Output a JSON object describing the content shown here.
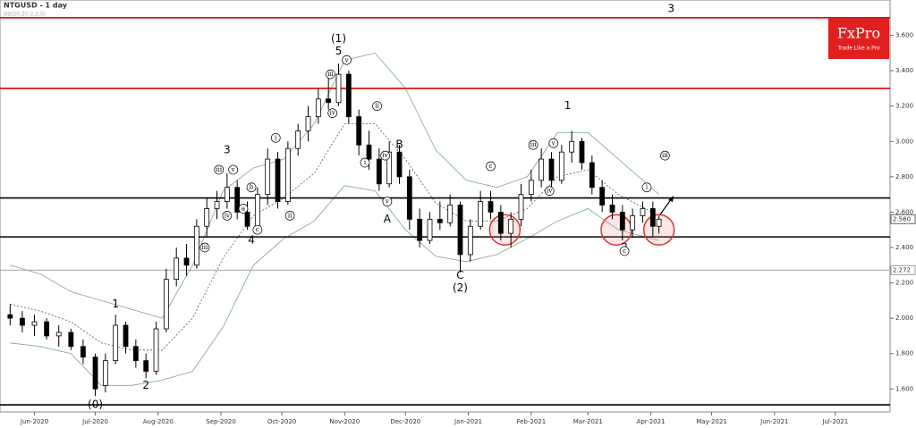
{
  "chart_data": {
    "type": "candlestick",
    "title": "NTGUSD - 1 day",
    "subtitle": "BB(20,20.2,2,0)",
    "xlim": [
      14,
      453
    ],
    "ylim": [
      1.47,
      3.8
    ],
    "xticks": [
      {
        "value": 31,
        "label": "Jun-2020"
      },
      {
        "value": 61,
        "label": "Jul-2020"
      },
      {
        "value": 92,
        "label": "Aug-2020"
      },
      {
        "value": 123,
        "label": "Sep-2020"
      },
      {
        "value": 153,
        "label": "Oct-2020"
      },
      {
        "value": 184,
        "label": "Nov-2020"
      },
      {
        "value": 214,
        "label": "Dec-2020"
      },
      {
        "value": 245,
        "label": "Jan-2021"
      },
      {
        "value": 276,
        "label": "Feb-2021"
      },
      {
        "value": 304,
        "label": "Mar-2021"
      },
      {
        "value": 335,
        "label": "Apr-2021"
      },
      {
        "value": 365,
        "label": "May-2021"
      },
      {
        "value": 396,
        "label": "Jun-2021"
      },
      {
        "value": 426,
        "label": "Jul-2021"
      }
    ],
    "yticks": [
      {
        "value": 1.6,
        "label": "1.600"
      },
      {
        "value": 1.8,
        "label": "1.800"
      },
      {
        "value": 2,
        "label": "2.000"
      },
      {
        "value": 2.2,
        "label": "2.200"
      },
      {
        "value": 2.4,
        "label": "2.400"
      },
      {
        "value": 2.6,
        "label": "2.600"
      },
      {
        "value": 2.8,
        "label": "2.800"
      },
      {
        "value": 3,
        "label": "3.000"
      },
      {
        "value": 3.2,
        "label": "3.200"
      },
      {
        "value": 3.4,
        "label": "3.400"
      },
      {
        "value": 3.6,
        "label": "3.600"
      }
    ],
    "up_color": "#ffffff",
    "down_color": "#000000",
    "x": [
      19,
      25,
      31,
      37,
      43,
      49,
      55,
      61,
      66,
      71,
      76,
      81,
      86,
      91,
      96,
      101,
      106,
      111,
      116,
      121,
      126,
      131,
      136,
      141,
      146,
      151,
      156,
      161,
      166,
      171,
      176,
      181,
      186,
      191,
      196,
      201,
      206,
      211,
      216,
      221,
      226,
      231,
      236,
      241,
      246,
      251,
      256,
      261,
      266,
      271,
      276,
      281,
      286,
      291,
      296,
      301,
      306,
      311,
      316,
      321,
      326,
      331,
      336,
      339
    ],
    "open": [
      2.02,
      2.0,
      1.96,
      1.98,
      1.9,
      1.92,
      1.84,
      1.78,
      1.62,
      1.76,
      1.96,
      1.84,
      1.76,
      1.7,
      1.94,
      2.22,
      2.34,
      2.3,
      2.52,
      2.62,
      2.66,
      2.74,
      2.6,
      2.52,
      2.7,
      2.9,
      2.66,
      2.96,
      3.06,
      3.14,
      3.24,
      3.22,
      3.38,
      3.14,
      2.98,
      2.9,
      2.76,
      2.94,
      2.8,
      2.56,
      2.44,
      2.56,
      2.54,
      2.64,
      2.36,
      2.52,
      2.66,
      2.6,
      2.48,
      2.56,
      2.7,
      2.78,
      2.9,
      2.78,
      2.94,
      3.0,
      2.88,
      2.74,
      2.64,
      2.6,
      2.5,
      2.58,
      2.62,
      2.52
    ],
    "high": [
      2.08,
      2.04,
      2.02,
      2.0,
      1.96,
      1.94,
      1.88,
      1.8,
      1.8,
      2.02,
      1.98,
      1.88,
      1.8,
      1.98,
      2.28,
      2.4,
      2.42,
      2.56,
      2.68,
      2.72,
      2.82,
      2.78,
      2.66,
      2.74,
      2.96,
      2.94,
      3.0,
      3.1,
      3.2,
      3.3,
      3.36,
      3.44,
      3.4,
      3.18,
      3.06,
      2.96,
      3.0,
      2.98,
      2.84,
      2.62,
      2.6,
      2.66,
      2.7,
      2.66,
      2.56,
      2.72,
      2.72,
      2.64,
      2.6,
      2.76,
      2.84,
      2.96,
      2.94,
      2.98,
      3.06,
      3.02,
      2.92,
      2.78,
      2.7,
      2.64,
      2.62,
      2.66,
      2.66,
      2.58
    ],
    "low": [
      1.96,
      1.92,
      1.9,
      1.88,
      1.84,
      1.82,
      1.74,
      1.56,
      1.58,
      1.74,
      1.8,
      1.72,
      1.66,
      1.68,
      1.92,
      2.18,
      2.24,
      2.28,
      2.46,
      2.56,
      2.62,
      2.56,
      2.5,
      2.5,
      2.64,
      2.62,
      2.64,
      2.92,
      3.0,
      3.1,
      3.18,
      3.2,
      3.1,
      2.92,
      2.84,
      2.72,
      2.74,
      2.76,
      2.5,
      2.4,
      2.42,
      2.5,
      2.52,
      2.26,
      2.32,
      2.5,
      2.56,
      2.44,
      2.4,
      2.52,
      2.66,
      2.74,
      2.72,
      2.76,
      2.88,
      2.84,
      2.7,
      2.6,
      2.56,
      2.44,
      2.46,
      2.54,
      2.46,
      2.48
    ],
    "close": [
      2.0,
      1.96,
      1.98,
      1.9,
      1.92,
      1.84,
      1.78,
      1.6,
      1.76,
      1.96,
      1.84,
      1.76,
      1.7,
      1.94,
      2.22,
      2.34,
      2.3,
      2.52,
      2.62,
      2.66,
      2.74,
      2.6,
      2.52,
      2.7,
      2.9,
      2.66,
      2.96,
      3.06,
      3.14,
      3.24,
      3.22,
      3.38,
      3.14,
      2.98,
      2.9,
      2.76,
      2.94,
      2.8,
      2.56,
      2.44,
      2.56,
      2.54,
      2.64,
      2.36,
      2.52,
      2.66,
      2.6,
      2.48,
      2.56,
      2.7,
      2.78,
      2.9,
      2.78,
      2.94,
      3.0,
      2.88,
      2.74,
      2.64,
      2.6,
      2.5,
      2.58,
      2.62,
      2.52,
      2.56
    ],
    "bands": {
      "color": "#7aa88a",
      "x": [
        19,
        34,
        49,
        64,
        79,
        94,
        109,
        124,
        139,
        154,
        169,
        184,
        199,
        214,
        229,
        244,
        259,
        274,
        289,
        304,
        319,
        339
      ],
      "upper": [
        2.3,
        2.25,
        2.15,
        2.1,
        2.05,
        2.0,
        2.3,
        2.72,
        2.85,
        2.9,
        3.1,
        3.46,
        3.5,
        3.3,
        2.95,
        2.78,
        2.74,
        2.8,
        3.05,
        3.05,
        2.9,
        2.7
      ],
      "middle": [
        2.08,
        2.04,
        1.98,
        1.86,
        1.82,
        1.82,
        2.0,
        2.34,
        2.58,
        2.68,
        2.82,
        3.1,
        3.1,
        2.9,
        2.65,
        2.55,
        2.55,
        2.62,
        2.8,
        2.84,
        2.7,
        2.58
      ],
      "lower": [
        1.86,
        1.84,
        1.8,
        1.62,
        1.62,
        1.65,
        1.7,
        1.95,
        2.3,
        2.45,
        2.55,
        2.75,
        2.72,
        2.5,
        2.35,
        2.32,
        2.36,
        2.45,
        2.55,
        2.62,
        2.5,
        2.44
      ]
    },
    "levels": [
      {
        "value": 3.7,
        "color": "#e00000"
      },
      {
        "value": 3.3,
        "color": "#e00000"
      },
      {
        "value": 2.68,
        "color": "#000000"
      },
      {
        "value": 2.46,
        "color": "#000000"
      },
      {
        "value": 1.51,
        "color": "#000000"
      },
      {
        "value": 2.272,
        "color": "#999999",
        "label": "2.272"
      }
    ],
    "last_price": {
      "value": 2.56,
      "label": "2.560"
    },
    "highlights": {
      "color": "#e03030",
      "x": [
        263,
        318,
        339
      ],
      "y": [
        2.5,
        2.5,
        2.5
      ]
    },
    "annotations": [
      {
        "text": "(0)",
        "x": 61,
        "y": 1.51
      },
      {
        "text": "1",
        "x": 71,
        "y": 2.08
      },
      {
        "text": "2",
        "x": 86,
        "y": 1.62
      },
      {
        "text": "3",
        "x": 126,
        "y": 2.95
      },
      {
        "text": "4",
        "x": 138,
        "y": 2.44
      },
      {
        "text": "(1)",
        "x": 181,
        "y": 3.58
      },
      {
        "text": "5",
        "x": 181,
        "y": 3.51
      },
      {
        "text": "A",
        "x": 205,
        "y": 2.56
      },
      {
        "text": "B",
        "x": 211,
        "y": 2.98
      },
      {
        "text": "C",
        "x": 241,
        "y": 2.24
      },
      {
        "text": "(2)",
        "x": 241,
        "y": 2.17
      },
      {
        "text": "1",
        "x": 294,
        "y": 3.2
      },
      {
        "text": "2",
        "x": 322,
        "y": 2.4
      },
      {
        "text": "3",
        "x": 345,
        "y": 3.75
      }
    ],
    "circled": [
      {
        "text": "iii",
        "x": 122,
        "y": 2.84
      },
      {
        "text": "v",
        "x": 129,
        "y": 2.84
      },
      {
        "text": "iv",
        "x": 126,
        "y": 2.58
      },
      {
        "text": "b",
        "x": 138,
        "y": 2.74
      },
      {
        "text": "a",
        "x": 134,
        "y": 2.62
      },
      {
        "text": "c",
        "x": 141,
        "y": 2.5
      },
      {
        "text": "iii",
        "x": 115,
        "y": 2.4
      },
      {
        "text": "i",
        "x": 150,
        "y": 3.02
      },
      {
        "text": "ii",
        "x": 157,
        "y": 2.58
      },
      {
        "text": "iii",
        "x": 177,
        "y": 3.38
      },
      {
        "text": "v",
        "x": 185,
        "y": 3.46
      },
      {
        "text": "iv",
        "x": 178,
        "y": 3.16
      },
      {
        "text": "i",
        "x": 194,
        "y": 2.88
      },
      {
        "text": "ii",
        "x": 200,
        "y": 3.2
      },
      {
        "text": "iv",
        "x": 204,
        "y": 2.92
      },
      {
        "text": "v",
        "x": 205,
        "y": 2.66
      },
      {
        "text": "c",
        "x": 256,
        "y": 2.86
      },
      {
        "text": "iii",
        "x": 277,
        "y": 2.98
      },
      {
        "text": "v",
        "x": 287,
        "y": 2.99
      },
      {
        "text": "iv",
        "x": 285,
        "y": 2.72
      },
      {
        "text": "i",
        "x": 333,
        "y": 2.74
      },
      {
        "text": "iii",
        "x": 342,
        "y": 2.92
      },
      {
        "text": "c",
        "x": 322,
        "y": 2.38
      }
    ]
  },
  "logo": {
    "name": "FxPro",
    "tagline": "Trade Like a Pro"
  }
}
